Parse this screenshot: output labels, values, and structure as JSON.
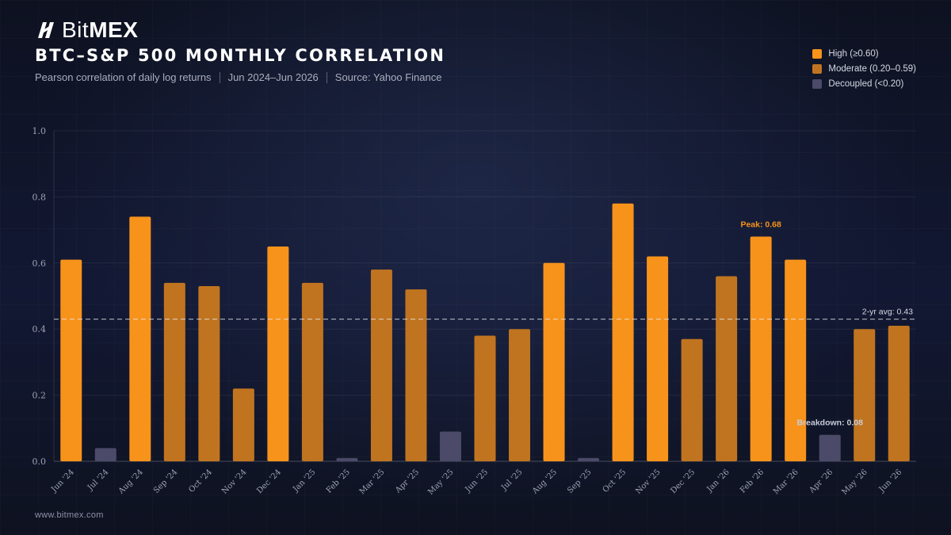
{
  "brand": {
    "name_regular": "Bit",
    "name_bold": "MEX"
  },
  "title": "BTC–S&P 500 MONTHLY CORRELATION",
  "subtitle": {
    "part1": "Pearson correlation of daily log returns",
    "part2": "Jun 2024–Jun 2026",
    "part3": "Source: Yahoo Finance"
  },
  "legend": [
    {
      "label": "High (≥0.60)",
      "color": "#f7931a"
    },
    {
      "label": "Moderate (0.20–0.59)",
      "color": "#c07420"
    },
    {
      "label": "Decoupled (<0.20)",
      "color": "#4b4a68"
    }
  ],
  "footer": "www.bitmex.com",
  "chart_data": {
    "type": "bar",
    "categories": [
      "Jun '24",
      "Jul '24",
      "Aug '24",
      "Sep '24",
      "Oct '24",
      "Nov '24",
      "Dec '24",
      "Jan '25",
      "Feb '25",
      "Mar '25",
      "Apr '25",
      "May '25",
      "Jun '25",
      "Jul '25",
      "Aug '25",
      "Sep '25",
      "Oct '25",
      "Nov '25",
      "Dec '25",
      "Jan '26",
      "Feb '26",
      "Mar '26",
      "Apr '26",
      "May '26",
      "Jun '26"
    ],
    "values": [
      0.61,
      0.04,
      0.74,
      0.54,
      0.53,
      0.22,
      0.65,
      0.54,
      0.01,
      0.58,
      0.52,
      0.09,
      0.38,
      0.4,
      0.6,
      0.01,
      0.78,
      0.62,
      0.37,
      0.56,
      0.68,
      0.61,
      0.08,
      0.4,
      0.41
    ],
    "ylim": [
      0,
      1.0
    ],
    "yticks": [
      "0.0",
      "0.2",
      "0.4",
      "0.6",
      "0.8",
      "1.0"
    ],
    "ytick_values": [
      0.0,
      0.2,
      0.4,
      0.6,
      0.8,
      1.0
    ],
    "grid": true,
    "legend_position": "top-right",
    "colors": {
      "high": "#f7931a",
      "moderate": "#c07420",
      "decoupled": "#4b4a68"
    },
    "thresholds": {
      "high": 0.6,
      "moderate": 0.2
    },
    "average": {
      "value": 0.43,
      "label": "2-yr avg: 0.43"
    },
    "annotations": [
      {
        "category": "Feb '26",
        "text": "Peak: 0.68",
        "color": "#f7931a"
      },
      {
        "category": "Apr '26",
        "text": "Breakdown: 0.08",
        "color": "#c9ccd8"
      }
    ]
  }
}
